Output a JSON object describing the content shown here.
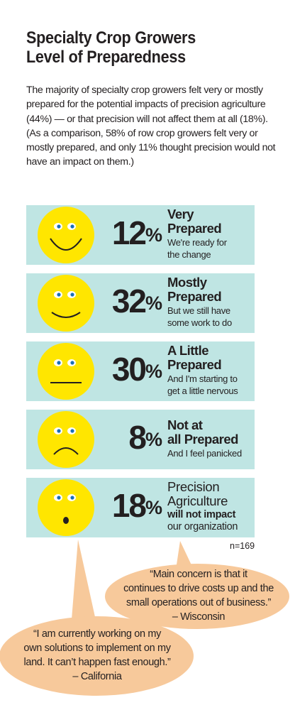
{
  "title_line1": "Specialty Crop Growers",
  "title_line2": "Level of Preparedness",
  "intro": "The majority of specialty crop growers felt very or mostly prepared for the potential impacts of precision agriculture (44%) — or that precision will not affect them at all (18%). (As a comparison, 58% of row crop growers felt very or mostly prepared, and only 11% thought precision would not have an impact on them.)",
  "colors": {
    "row_bg": "#bfe5e3",
    "face": "#ffe600",
    "bubble": "#f7c99b",
    "text": "#231f20"
  },
  "chart_data": {
    "type": "table",
    "categories": [
      "Very Prepared",
      "Mostly Prepared",
      "A Little Prepared",
      "Not at all Prepared",
      "Precision Agriculture will not impact our organization"
    ],
    "values": [
      12,
      32,
      30,
      8,
      18
    ],
    "unit": "%",
    "n": "n=169"
  },
  "rows": [
    {
      "pct": "12",
      "sign": "%",
      "head1": "Very",
      "head2": "Prepared",
      "sub1": "We're ready for",
      "sub2": "the change",
      "face": "happy"
    },
    {
      "pct": "32",
      "sign": "%",
      "head1": "Mostly",
      "head2": "Prepared",
      "sub1": "But we still have",
      "sub2": "some work to do",
      "face": "smile"
    },
    {
      "pct": "30",
      "sign": "%",
      "head1": "A Little",
      "head2": "Prepared",
      "sub1": "And I'm starting to",
      "sub2": "get a little nervous",
      "face": "neutral"
    },
    {
      "pct": "8",
      "sign": "%",
      "head1": "Not at",
      "head2": "all Prepared",
      "sub1": "And I feel panicked",
      "sub2": "",
      "face": "sad"
    },
    {
      "pct": "18",
      "sign": "%",
      "l1": "Precision",
      "l2": "Agriculture",
      "l3": "will not impact",
      "l4": "our organization",
      "face": "surprised"
    }
  ],
  "n_label": "n=169",
  "quote_wisconsin": {
    "line1": "“Main concern is that it",
    "line2": "continues to drive costs up and the",
    "line3": "small operations out of business.”",
    "source": "– Wisconsin"
  },
  "quote_california": {
    "line1": "“I am currently working on my",
    "line2": "own solutions to implement on my",
    "line3": "land. It can’t happen fast enough.”",
    "source": "– California"
  }
}
